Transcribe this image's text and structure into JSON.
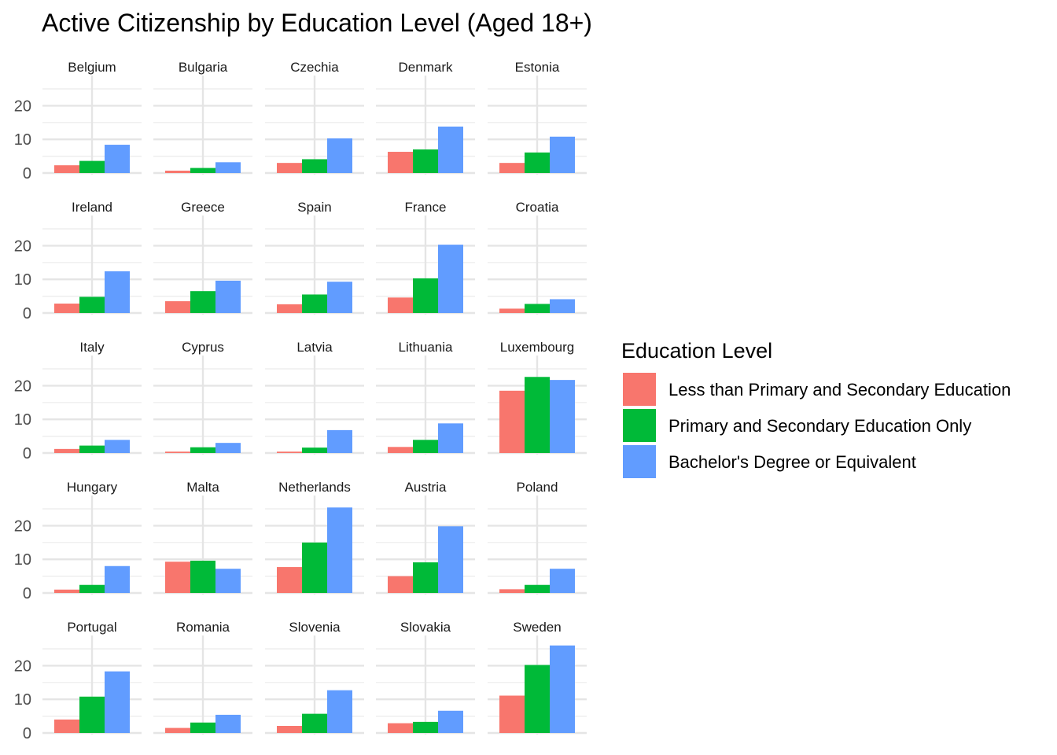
{
  "chart_data": {
    "type": "bar",
    "title": "Active Citizenship by Education Level (Aged 18+)",
    "xlabel": "",
    "ylabel": "",
    "ylim": [
      0,
      28
    ],
    "y_ticks": [
      0,
      10,
      20
    ],
    "grid": true,
    "legend": {
      "title": "Education Level",
      "position": "right"
    },
    "series": [
      {
        "name": "Less than Primary and Secondary Education",
        "color": "#F8766D"
      },
      {
        "name": "Primary and Secondary Education Only",
        "color": "#00BA38"
      },
      {
        "name": "Bachelor's Degree or Equivalent",
        "color": "#619CFF"
      }
    ],
    "facets": [
      {
        "country": "Belgium",
        "values": [
          2.3,
          3.6,
          8.4
        ]
      },
      {
        "country": "Bulgaria",
        "values": [
          0.7,
          1.5,
          3.2
        ]
      },
      {
        "country": "Czechia",
        "values": [
          3.0,
          4.1,
          10.3
        ]
      },
      {
        "country": "Denmark",
        "values": [
          6.3,
          7.0,
          13.8
        ]
      },
      {
        "country": "Estonia",
        "values": [
          3.0,
          6.1,
          10.8
        ]
      },
      {
        "country": "Ireland",
        "values": [
          2.8,
          4.8,
          12.4
        ]
      },
      {
        "country": "Greece",
        "values": [
          3.5,
          6.5,
          9.6
        ]
      },
      {
        "country": "Spain",
        "values": [
          2.6,
          5.5,
          9.3
        ]
      },
      {
        "country": "France",
        "values": [
          4.6,
          10.3,
          20.3
        ]
      },
      {
        "country": "Croatia",
        "values": [
          1.3,
          2.7,
          4.1
        ]
      },
      {
        "country": "Italy",
        "values": [
          1.2,
          2.2,
          3.9
        ]
      },
      {
        "country": "Cyprus",
        "values": [
          0.4,
          1.7,
          3.0
        ]
      },
      {
        "country": "Latvia",
        "values": [
          0.4,
          1.6,
          6.8
        ]
      },
      {
        "country": "Lithuania",
        "values": [
          1.8,
          3.9,
          8.8
        ]
      },
      {
        "country": "Luxembourg",
        "values": [
          18.5,
          22.6,
          21.7
        ]
      },
      {
        "country": "Hungary",
        "values": [
          1.0,
          2.4,
          8.0
        ]
      },
      {
        "country": "Malta",
        "values": [
          9.3,
          9.6,
          7.2
        ]
      },
      {
        "country": "Netherlands",
        "values": [
          7.7,
          15.0,
          25.4
        ]
      },
      {
        "country": "Austria",
        "values": [
          5.0,
          9.1,
          19.8
        ]
      },
      {
        "country": "Poland",
        "values": [
          1.1,
          2.4,
          7.2
        ]
      },
      {
        "country": "Portugal",
        "values": [
          4.0,
          10.8,
          18.3
        ]
      },
      {
        "country": "Romania",
        "values": [
          1.5,
          3.1,
          5.4
        ]
      },
      {
        "country": "Slovenia",
        "values": [
          2.1,
          5.7,
          12.7
        ]
      },
      {
        "country": "Slovakia",
        "values": [
          2.9,
          3.3,
          6.6
        ]
      },
      {
        "country": "Sweden",
        "values": [
          11.1,
          20.2,
          26.0
        ]
      }
    ]
  }
}
